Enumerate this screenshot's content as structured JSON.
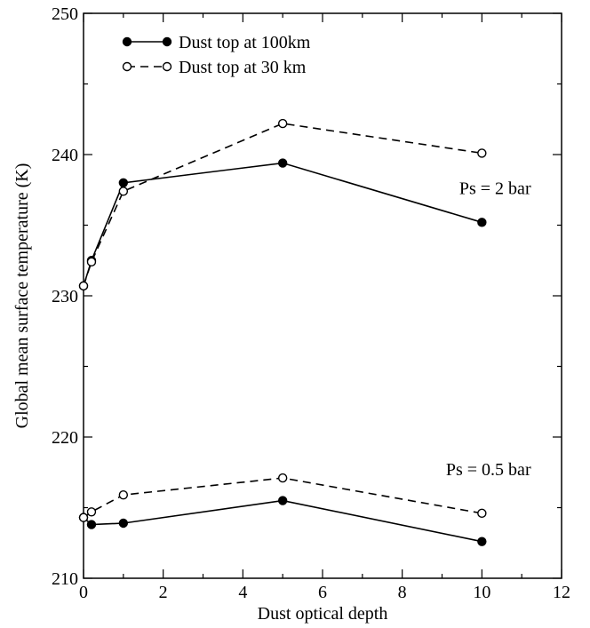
{
  "chart_data": {
    "type": "line",
    "title": "",
    "xlabel": "Dust optical depth",
    "ylabel": "Global mean surface temperature (K)",
    "xlim": [
      0,
      12
    ],
    "ylim": [
      210,
      250
    ],
    "xticks": [
      0,
      2,
      4,
      6,
      8,
      10,
      12
    ],
    "yticks": [
      210,
      220,
      230,
      240,
      250
    ],
    "grid": false,
    "legend_position": "top-left",
    "legend": [
      {
        "label": "Dust top at 100km",
        "style": "solid",
        "marker": "filled-circle"
      },
      {
        "label": "Dust top at 30 km",
        "style": "dashed",
        "marker": "open-circle"
      }
    ],
    "series": [
      {
        "group": "Ps = 2 bar",
        "legend_index": 0,
        "x": [
          0,
          0.2,
          1,
          5,
          10
        ],
        "y": [
          230.7,
          232.5,
          238.0,
          239.4,
          235.2
        ]
      },
      {
        "group": "Ps = 2 bar",
        "legend_index": 1,
        "x": [
          0,
          0.2,
          1,
          5,
          10
        ],
        "y": [
          230.7,
          232.4,
          237.4,
          242.2,
          240.1
        ]
      },
      {
        "group": "Ps = 0.5 bar",
        "legend_index": 0,
        "x": [
          0,
          0.2,
          1,
          5,
          10
        ],
        "y": [
          214.3,
          213.8,
          213.9,
          215.5,
          212.6
        ]
      },
      {
        "group": "Ps = 0.5 bar",
        "legend_index": 1,
        "x": [
          0,
          0.2,
          1,
          5,
          10
        ],
        "y": [
          214.3,
          214.7,
          215.9,
          217.1,
          214.6
        ]
      }
    ],
    "annotations": [
      {
        "text": "Ps = 2 bar",
        "x": 11.3,
        "y": 237.2
      },
      {
        "text": "Ps = 0.5 bar",
        "x": 11.3,
        "y": 217.3
      }
    ]
  }
}
